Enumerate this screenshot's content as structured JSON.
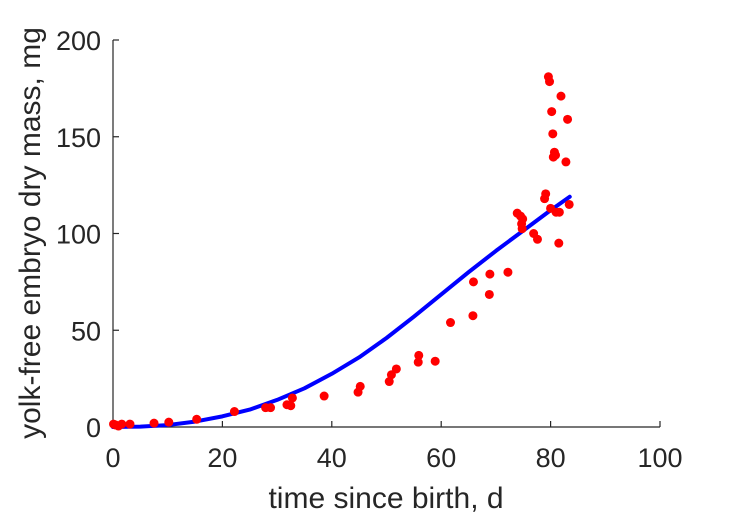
{
  "chart_data": {
    "type": "scatter",
    "title": "",
    "xlabel": "time since birth, d",
    "ylabel": "yolk-free embryo dry mass, mg",
    "xlim": [
      0,
      100
    ],
    "ylim": [
      0,
      200
    ],
    "xticks": [
      0,
      20,
      40,
      60,
      80,
      100
    ],
    "yticks": [
      0,
      50,
      100,
      150,
      200
    ],
    "grid": false,
    "colors": {
      "points": "#ff0000",
      "curve": "#0000ff",
      "axes": "#262626"
    },
    "series": [
      {
        "type": "scatter",
        "x": [
          0.1,
          0.5,
          1.0,
          1.6,
          3.1,
          7.5,
          10.2,
          15.3,
          22.2,
          27.9,
          28.8,
          31.8,
          32.5,
          32.8,
          38.6,
          44.8,
          45.2,
          50.5,
          50.9,
          51.8,
          55.8,
          55.9,
          58.9,
          61.7,
          65.8,
          65.9,
          68.8,
          68.9,
          72.2,
          73.9,
          74.5,
          74.7,
          74.8,
          74.9,
          76.9,
          77.6,
          78.9,
          79.1,
          79.6,
          79.8,
          80.0,
          80.2,
          80.4,
          80.5,
          80.7,
          80.9,
          81.0,
          81.5,
          81.6,
          81.9,
          82.8,
          83.1,
          83.4
        ],
        "y": [
          1.5,
          1.0,
          0.5,
          1.5,
          1.5,
          2.0,
          2.5,
          4.0,
          8.0,
          10.0,
          10.0,
          11.5,
          11.0,
          15.0,
          16.0,
          18.0,
          21.0,
          23.5,
          27.0,
          30.0,
          33.5,
          37.0,
          34.0,
          54.0,
          57.5,
          75.0,
          68.5,
          79.0,
          80.0,
          110.5,
          109.0,
          105.0,
          102.5,
          107.5,
          100.0,
          97.0,
          118.0,
          120.5,
          181.0,
          178.5,
          113.0,
          163.0,
          151.5,
          139.5,
          142.0,
          140.5,
          111.0,
          95.0,
          111.0,
          171.0,
          137.0,
          159.0,
          115.0
        ]
      },
      {
        "type": "line",
        "x": [
          0,
          5,
          10,
          15,
          20,
          25,
          30,
          35,
          40,
          45,
          50,
          55,
          60,
          65,
          70,
          75,
          80,
          83.5
        ],
        "y": [
          0,
          0.2,
          1.0,
          2.8,
          5.5,
          9.0,
          14.0,
          20.0,
          27.5,
          36.0,
          46.0,
          57.0,
          68.5,
          80.0,
          91.0,
          101.5,
          112.0,
          119.0
        ]
      }
    ]
  }
}
